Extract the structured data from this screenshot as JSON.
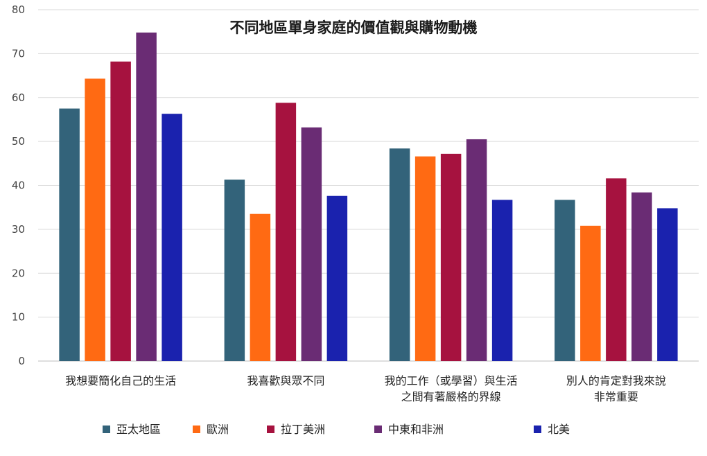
{
  "chart_data": {
    "type": "bar",
    "title": "不同地區單身家庭的價值觀與購物動機",
    "ylim": [
      0,
      80
    ],
    "yticks": [
      0,
      10,
      20,
      30,
      40,
      50,
      60,
      70,
      80
    ],
    "grid": true,
    "legend_position": "bottom",
    "categories": [
      [
        "我想要簡化自己的生活"
      ],
      [
        "我喜歡與眾不同"
      ],
      [
        "我的工作（或學習）與生活",
        "之間有著嚴格的界線"
      ],
      [
        "別人的肯定對我來說",
        "非常重要"
      ]
    ],
    "series": [
      {
        "name": "亞太地區",
        "color": "#33637A",
        "values": [
          57.5,
          41.3,
          48.4,
          36.7
        ]
      },
      {
        "name": "歐洲",
        "color": "#FF6A13",
        "values": [
          64.3,
          33.5,
          46.6,
          30.8
        ]
      },
      {
        "name": "拉丁美洲",
        "color": "#A6123F",
        "values": [
          68.2,
          58.8,
          47.2,
          41.6
        ]
      },
      {
        "name": "中東和非洲",
        "color": "#6A2C74",
        "values": [
          74.8,
          53.2,
          50.5,
          38.4
        ]
      },
      {
        "name": "北美",
        "color": "#1A22AE",
        "values": [
          56.3,
          37.6,
          36.7,
          34.8
        ]
      }
    ]
  }
}
